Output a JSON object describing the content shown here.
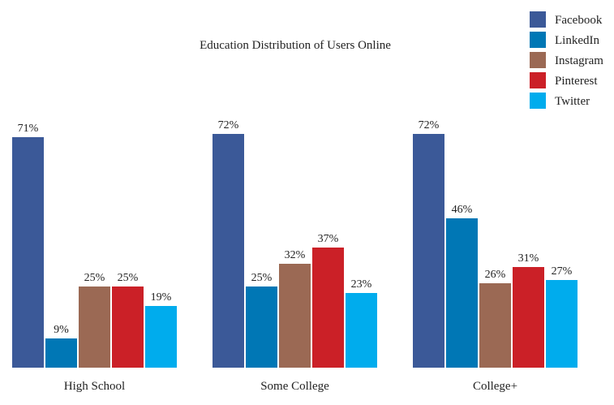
{
  "chart_data": {
    "type": "bar",
    "title": "Education Distribution of Users Online",
    "xlabel": "",
    "ylabel": "",
    "ylim": [
      0,
      80
    ],
    "unit": "%",
    "grid": false,
    "legend_position": "top-right",
    "categories": [
      "High School",
      "Some College",
      "College+"
    ],
    "series": [
      {
        "name": "Facebook",
        "color": "#3b5998",
        "values": [
          71,
          72,
          72
        ]
      },
      {
        "name": "LinkedIn",
        "color": "#0077b5",
        "values": [
          9,
          25,
          46
        ]
      },
      {
        "name": "Instagram",
        "color": "#9b6954",
        "values": [
          25,
          32,
          26
        ]
      },
      {
        "name": "Pinterest",
        "color": "#cb2027",
        "values": [
          25,
          37,
          31
        ]
      },
      {
        "name": "Twitter",
        "color": "#00aced",
        "values": [
          19,
          23,
          27
        ]
      }
    ]
  }
}
